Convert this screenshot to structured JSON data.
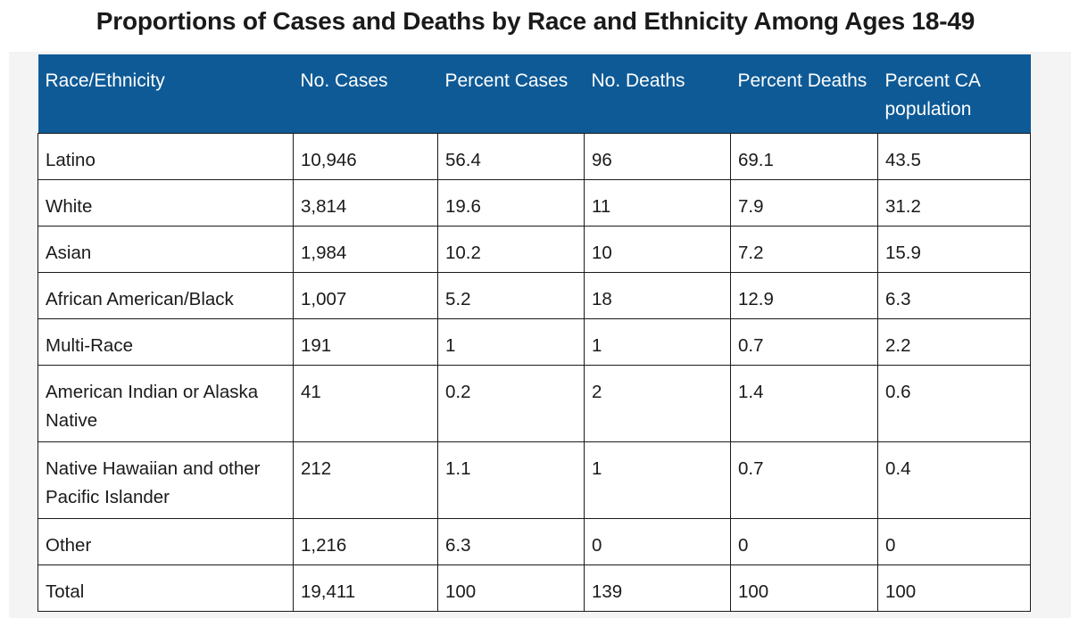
{
  "title": "Proportions of Cases and Deaths by Race and Ethnicity Among Ages 18-49",
  "colors": {
    "header_background": "#0e5a96",
    "header_text": "#ffffff",
    "frame_background": "#f4f4f4"
  },
  "table": {
    "headers": [
      "Race/Ethnicity",
      "No. Cases",
      "Percent Cases",
      "No. Deaths",
      "Percent Deaths",
      "Percent CA population"
    ],
    "rows": [
      [
        "Latino",
        "10,946",
        "56.4",
        "96",
        "69.1",
        "43.5"
      ],
      [
        "White",
        "3,814",
        "19.6",
        "11",
        "7.9",
        "31.2"
      ],
      [
        "Asian",
        "1,984",
        "10.2",
        "10",
        "7.2",
        "15.9"
      ],
      [
        "African American/Black",
        "1,007",
        "5.2",
        "18",
        "12.9",
        "6.3"
      ],
      [
        "Multi-Race",
        "191",
        "1",
        "1",
        "0.7",
        "2.2"
      ],
      [
        "American Indian or Alaska Native",
        "41",
        "0.2",
        "2",
        "1.4",
        "0.6"
      ],
      [
        "Native Hawaiian and other Pacific Islander",
        "212",
        "1.1",
        "1",
        "0.7",
        "0.4"
      ],
      [
        "Other",
        "1,216",
        "6.3",
        "0",
        "0",
        "0"
      ],
      [
        "Total",
        "19,411",
        "100",
        "139",
        "100",
        "100"
      ]
    ]
  }
}
